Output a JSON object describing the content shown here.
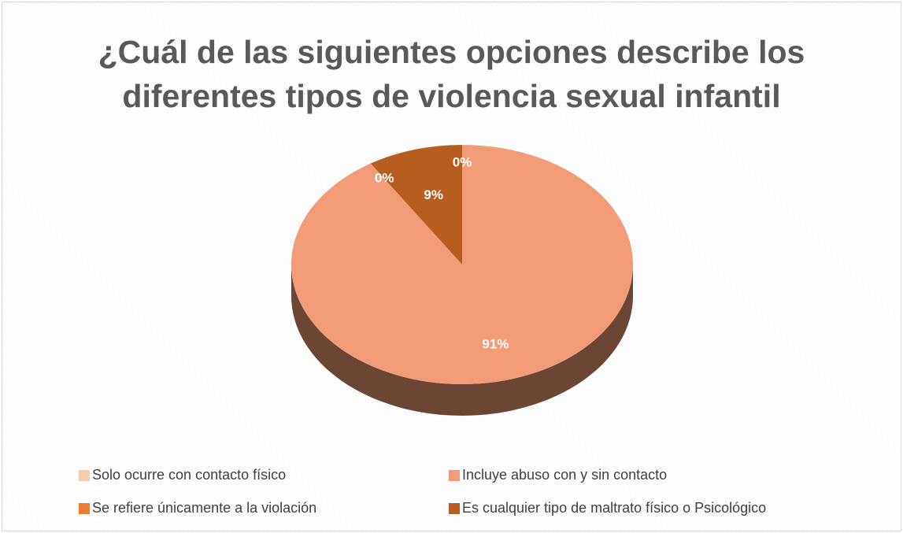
{
  "chart_data": {
    "type": "pie",
    "title": "¿Cuál de las siguientes opciones describe los diferentes tipos de violencia sexual infantil",
    "categories": [
      "Solo ocurre con contacto físico",
      "Incluye abuso con y sin contacto",
      "Se refiere únicamente a la violación",
      "Es cualquier tipo de maltrato físico o Psicológico"
    ],
    "values": [
      0,
      91,
      0,
      9
    ],
    "value_labels": [
      "0%",
      "91%",
      "0%",
      "9%"
    ],
    "colors": [
      "#f8cbad",
      "#f19c76",
      "#ed7d31",
      "#b85d20"
    ],
    "legend": "bottom"
  }
}
